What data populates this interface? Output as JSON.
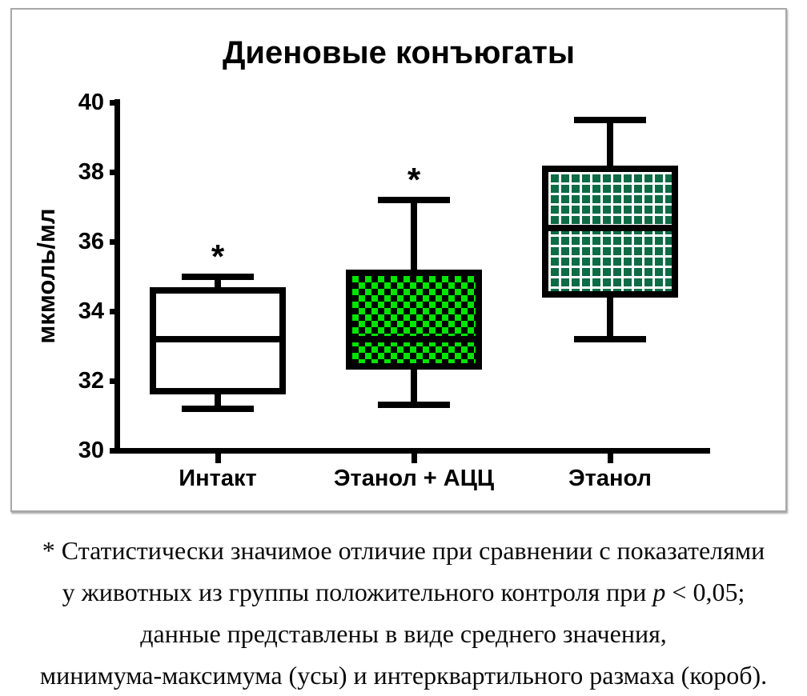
{
  "chart_data": {
    "type": "box",
    "title": "Диеновые конъюгаты",
    "ylabel": "мкмоль/мл",
    "ylim": [
      30,
      40
    ],
    "yticks": [
      40,
      38,
      36,
      34,
      32,
      30
    ],
    "grid": false,
    "legend": "none",
    "categories": [
      "Интакт",
      "Этанол + АЦЦ",
      "Этанол"
    ],
    "series": [
      {
        "name": "Интакт",
        "min": 31.2,
        "q1": 31.7,
        "median": 33.2,
        "q3": 34.6,
        "max": 35.0,
        "significant": true,
        "fill": "white"
      },
      {
        "name": "Этанол + АЦЦ",
        "min": 31.3,
        "q1": 32.4,
        "median": 33.2,
        "q3": 35.1,
        "max": 37.2,
        "significant": true,
        "fill": "green-checker"
      },
      {
        "name": "Этанол",
        "min": 33.2,
        "q1": 34.5,
        "median": 36.4,
        "q3": 38.1,
        "max": 39.5,
        "significant": false,
        "fill": "green-grid"
      }
    ]
  },
  "annotations": {
    "significance_marker": "*"
  },
  "caption": {
    "line1": "* Статистически значимое отличие при сравнении с показателями",
    "line2_prefix": "у животных из группы положительного контроля при ",
    "line2_italic": "p",
    "line2_suffix": " < 0,05;",
    "line3": "данные представлены в виде среднего значения,",
    "line4": "минимума-максимума (усы) и интерквартильного размаха (короб)."
  },
  "colors": {
    "black": "#000000",
    "white": "#ffffff",
    "bright_green": "#00e400",
    "dark_green": "#0d6b45",
    "panel_border": "#a8a8a8"
  }
}
